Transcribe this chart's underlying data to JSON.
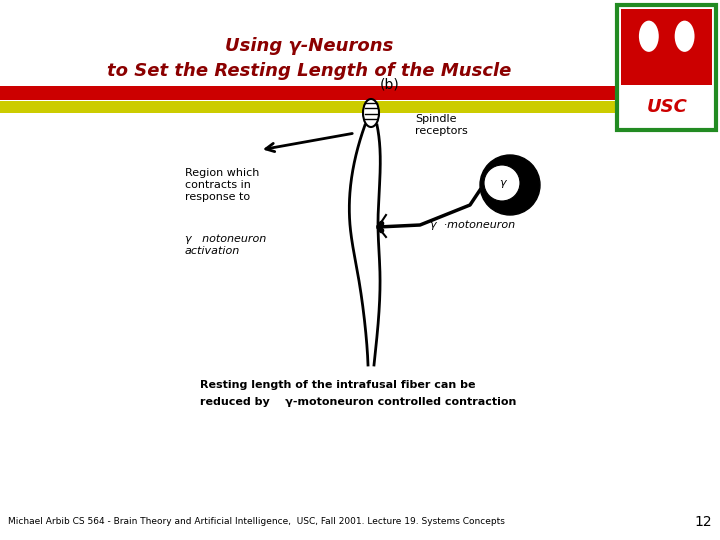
{
  "title_line1": "Using γ-Neurons",
  "title_line2": "to Set the Resting Length of the Muscle",
  "title_color": "#8B0000",
  "bg_color": "#FFFFFF",
  "footer_text": "Michael Arbib CS 564 - Brain Theory and Artificial Intelligence,  USC, Fall 2001. Lecture 19. Systems Concepts",
  "footer_page": "12",
  "bar_red": "#CC0000",
  "bar_yellow": "#CCCC00",
  "bar_dark_red": "#990000",
  "usc_border_color": "#228B22",
  "label_b": "(b)",
  "label_spindle": "Spindle\nreceptors",
  "label_gamma_motoneuron": "γ  ·motoneuron",
  "label_region": "Region which\ncontracts in\nresponse to",
  "label_gamma_act": "γ   notoneuron\nactivation",
  "label_bottom1": "Resting length of the intrafusal fiber can be",
  "label_bottom2": "reduced by    γ-motoneuron controlled contraction"
}
